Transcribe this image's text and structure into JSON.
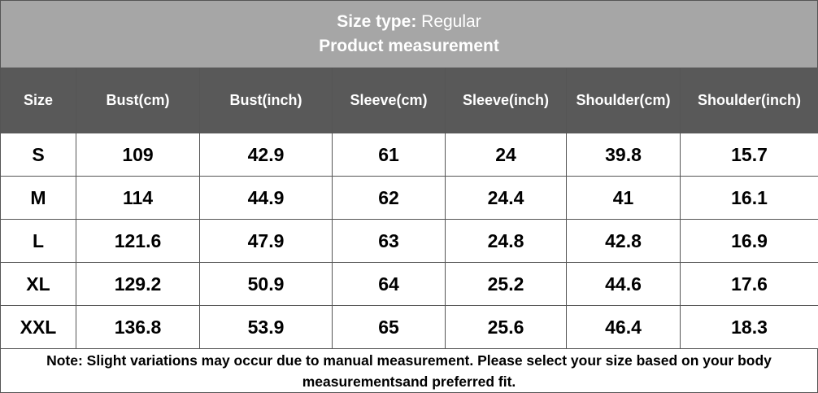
{
  "header": {
    "size_type_label": "Size type:",
    "size_type_value": "Regular",
    "subtitle": "Product measurement"
  },
  "table": {
    "columns": [
      "Size",
      "Bust(cm)",
      "Bust(inch)",
      "Sleeve(cm)",
      "Sleeve(inch)",
      "Shoulder(cm)",
      "Shoulder(inch)"
    ],
    "rows": [
      [
        "S",
        "109",
        "42.9",
        "61",
        "24",
        "39.8",
        "15.7"
      ],
      [
        "M",
        "114",
        "44.9",
        "62",
        "24.4",
        "41",
        "16.1"
      ],
      [
        "L",
        "121.6",
        "47.9",
        "63",
        "24.8",
        "42.8",
        "16.9"
      ],
      [
        "XL",
        "129.2",
        "50.9",
        "64",
        "25.2",
        "44.6",
        "17.6"
      ],
      [
        "XXL",
        "136.8",
        "53.9",
        "65",
        "25.6",
        "46.4",
        "18.3"
      ]
    ]
  },
  "note": "Note: Slight variations may occur due to manual measurement. Please select your size based on your body measurementsand preferred fit."
}
